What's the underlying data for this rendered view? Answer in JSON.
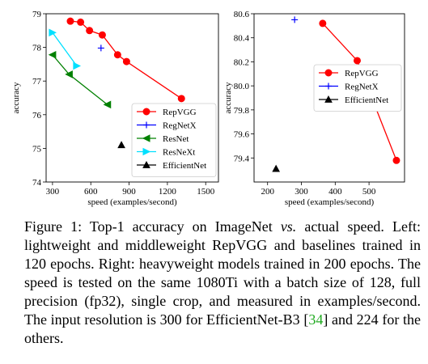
{
  "chart_data": [
    {
      "type": "line",
      "xlabel": "speed (examples/second)",
      "ylabel": "accuracy",
      "xlim": [
        250,
        1600
      ],
      "ylim": [
        74,
        79
      ],
      "xticks": [
        300,
        600,
        900,
        1200,
        1500
      ],
      "yticks": [
        74,
        75,
        76,
        77,
        78,
        79
      ],
      "legend_position": "lower-right",
      "series": [
        {
          "name": "RepVGG",
          "color": "#ff0000",
          "marker": "circle",
          "x": [
            440,
            520,
            590,
            690,
            810,
            880,
            1310
          ],
          "y": [
            78.78,
            78.75,
            78.5,
            78.37,
            77.78,
            77.58,
            76.48
          ]
        },
        {
          "name": "RegNetX",
          "color": "#0000ff",
          "marker": "plus",
          "x": [
            680
          ],
          "y": [
            77.98
          ]
        },
        {
          "name": "ResNet",
          "color": "#008000",
          "marker": "triangle-left",
          "x": [
            300,
            430,
            730
          ],
          "y": [
            77.78,
            77.2,
            76.3
          ]
        },
        {
          "name": "ResNeXt",
          "color": "#00e0ff",
          "marker": "triangle-right",
          "x": [
            300,
            490
          ],
          "y": [
            78.44,
            77.45
          ]
        },
        {
          "name": "EfficientNet",
          "color": "#000000",
          "marker": "triangle-up",
          "x": [
            840
          ],
          "y": [
            75.1
          ]
        }
      ]
    },
    {
      "type": "line",
      "xlabel": "speed (examples/second)",
      "ylabel": "accuracy",
      "xlim": [
        160,
        605
      ],
      "ylim": [
        79.2,
        80.6
      ],
      "xticks": [
        200,
        300,
        400,
        500
      ],
      "yticks": [
        79.4,
        79.6,
        79.8,
        80.0,
        80.2,
        80.4,
        80.6
      ],
      "legend_position": "top-right",
      "series": [
        {
          "name": "RepVGG",
          "color": "#ff0000",
          "marker": "circle",
          "x": [
            363,
            465,
            581
          ],
          "y": [
            80.52,
            80.21,
            79.38
          ]
        },
        {
          "name": "RegNetX",
          "color": "#0000ff",
          "marker": "plus",
          "x": [
            280
          ],
          "y": [
            80.55
          ]
        },
        {
          "name": "EfficientNet",
          "color": "#000000",
          "marker": "triangle-up",
          "x": [
            225
          ],
          "y": [
            79.31
          ]
        }
      ]
    }
  ],
  "caption": {
    "prefix": "Figure 1: Top-1 accuracy on ImageNet ",
    "vs": "vs.",
    "middle": " actual speed. Left: lightweight and middleweight RepVGG and baselines trained in 120 epochs. Right: heavyweight models trained in 200 epochs. The speed is tested on the same 1080Ti with a batch size of 128, full precision (fp32), single crop, and measured in examples/second. The input resolution is 300 for EfficientNet-B3 [",
    "cite": "34",
    "suffix": "] and 224 for the others."
  }
}
